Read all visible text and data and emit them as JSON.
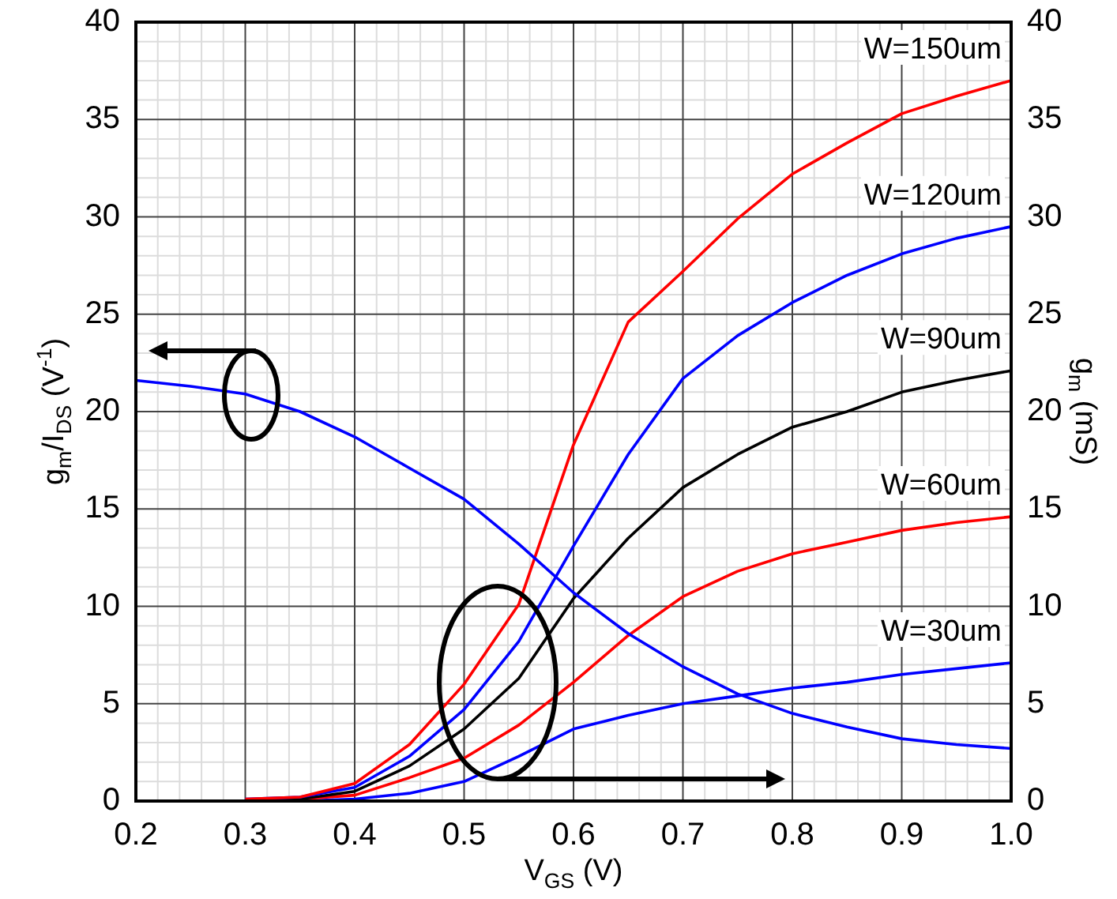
{
  "chart_data": {
    "type": "line",
    "xlabel": "V$_{GS}$ (V)",
    "ylabel": "g$_{m}$/I$_{DS}$ (V$^{-1}$)",
    "y2label": "g$_{m}$ (mS)",
    "x": [
      0.2,
      0.25,
      0.3,
      0.35,
      0.4,
      0.45,
      0.5,
      0.55,
      0.6,
      0.65,
      0.7,
      0.75,
      0.8,
      0.85,
      0.9,
      0.95,
      1.0
    ],
    "series": [
      {
        "color": "#0000ff",
        "values": [
          21.6,
          21.3,
          20.9,
          20.0,
          18.7,
          17.1,
          15.5,
          13.2,
          10.7,
          8.6,
          6.9,
          5.5,
          4.5,
          3.8,
          3.2,
          2.9,
          2.7
        ]
      },
      {
        "name": "W=150um",
        "color": "#ff0000",
        "axis": "y2",
        "values": [
          null,
          null,
          0.1,
          0.2,
          0.9,
          2.9,
          6.0,
          10.1,
          18.3,
          24.6,
          27.2,
          29.9,
          32.2,
          33.8,
          35.3,
          36.2,
          37.0
        ]
      },
      {
        "name": "W=120um",
        "color": "#0000ff",
        "axis": "y2",
        "values": [
          null,
          null,
          0.1,
          0.2,
          0.7,
          2.3,
          4.7,
          8.2,
          13.1,
          17.8,
          21.7,
          23.9,
          25.6,
          27.0,
          28.1,
          28.9,
          29.5
        ]
      },
      {
        "name": "W=90um",
        "color": "#000000",
        "axis": "y2",
        "values": [
          0,
          0,
          0,
          0.1,
          0.5,
          1.8,
          3.7,
          6.3,
          10.4,
          13.5,
          16.1,
          17.8,
          19.2,
          20.0,
          21.0,
          21.6,
          22.1
        ]
      },
      {
        "name": "W=60um",
        "color": "#ff0000",
        "axis": "y2",
        "values": [
          0,
          0,
          0,
          0.1,
          0.3,
          1.2,
          2.2,
          3.9,
          6.1,
          8.5,
          10.5,
          11.8,
          12.7,
          13.3,
          13.9,
          14.3,
          14.6
        ]
      },
      {
        "name": "W=30um",
        "color": "#0000ff",
        "axis": "y2",
        "values": [
          null,
          null,
          0,
          0,
          0.1,
          0.4,
          1.0,
          2.3,
          3.7,
          4.4,
          5.0,
          5.4,
          5.8,
          6.1,
          6.5,
          6.8,
          7.1
        ]
      }
    ],
    "xlim": [
      0.2,
      1.0
    ],
    "xticks": [
      0.2,
      0.3,
      0.4,
      0.5,
      0.6,
      0.7,
      0.8,
      0.9,
      {
        "value": 1.0,
        "label": "1.0"
      }
    ],
    "ylim": [
      0,
      40
    ],
    "yticks": [
      0,
      5,
      10,
      15,
      20,
      25,
      30,
      35,
      40
    ],
    "y2lim": [
      0,
      40
    ],
    "y2ticks": [
      0,
      5,
      10,
      15,
      20,
      25,
      30,
      35,
      40
    ],
    "grid": true,
    "legend": false,
    "marker": "none",
    "line_style": "solid"
  }
}
